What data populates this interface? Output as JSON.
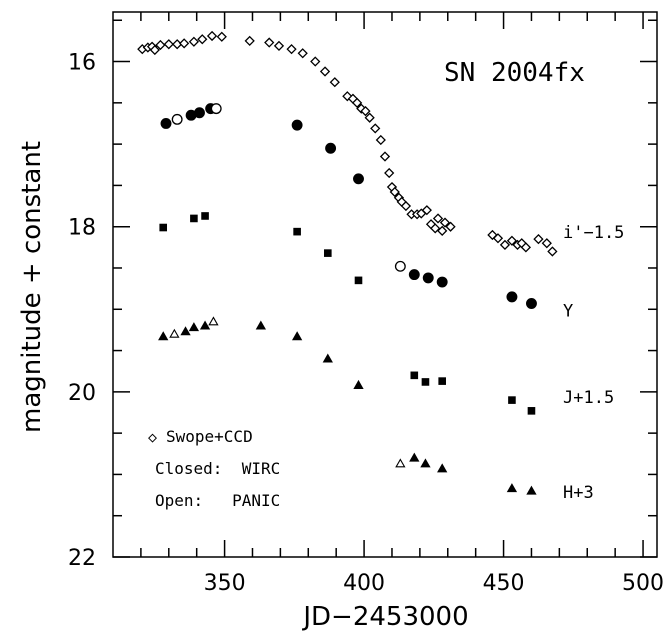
{
  "chart_data": {
    "type": "scatter",
    "title": "SN 2004fx",
    "xlabel": "JD−2453000",
    "ylabel": "magnitude + constant",
    "xlim": [
      310,
      505
    ],
    "ylim": [
      22,
      15.4
    ],
    "y_inverted": true,
    "grid": false,
    "x_ticks": [
      350,
      400,
      450,
      500
    ],
    "y_ticks": [
      16,
      18,
      20,
      22
    ],
    "band_labels": [
      {
        "text": "i'−1.5",
        "mag": 18.05
      },
      {
        "text": "Y",
        "mag": 19.0
      },
      {
        "text": "J+1.5",
        "mag": 20.05
      },
      {
        "text": "H+3",
        "mag": 21.2
      }
    ],
    "legend": {
      "swope_marker": "◇",
      "swope_text": "Swope+CCD",
      "closed_text": "Closed:  WIRC",
      "open_text": "Open:   PANIC"
    },
    "series": [
      {
        "name": "Swope+CCD",
        "band": "i'",
        "marker": "diamond",
        "filled": false,
        "points": [
          [
            320.5,
            15.85
          ],
          [
            322.5,
            15.83
          ],
          [
            324,
            15.82
          ],
          [
            325,
            15.86
          ],
          [
            327,
            15.8
          ],
          [
            330,
            15.79
          ],
          [
            333,
            15.79
          ],
          [
            335.5,
            15.78
          ],
          [
            339,
            15.76
          ],
          [
            342,
            15.73
          ],
          [
            345.5,
            15.69
          ],
          [
            349,
            15.7
          ],
          [
            359,
            15.75
          ],
          [
            366,
            15.77
          ],
          [
            369.5,
            15.81
          ],
          [
            374,
            15.85
          ],
          [
            378,
            15.9
          ],
          [
            382.5,
            16.0
          ],
          [
            386,
            16.12
          ],
          [
            389.5,
            16.25
          ],
          [
            394,
            16.42
          ],
          [
            396,
            16.45
          ],
          [
            397.5,
            16.5
          ],
          [
            399,
            16.57
          ],
          [
            400.5,
            16.6
          ],
          [
            402,
            16.68
          ],
          [
            404,
            16.81
          ],
          [
            406,
            16.95
          ],
          [
            407.5,
            17.15
          ],
          [
            409,
            17.35
          ],
          [
            410,
            17.52
          ],
          [
            411,
            17.58
          ],
          [
            412.5,
            17.65
          ],
          [
            413.5,
            17.7
          ],
          [
            415,
            17.75
          ],
          [
            417,
            17.85
          ],
          [
            419,
            17.85
          ],
          [
            420.5,
            17.84
          ],
          [
            422.5,
            17.8
          ],
          [
            424,
            17.97
          ],
          [
            425.5,
            18.02
          ],
          [
            426.5,
            17.9
          ],
          [
            428,
            18.05
          ],
          [
            429,
            17.95
          ],
          [
            431,
            18.0
          ],
          [
            446,
            18.1
          ],
          [
            448,
            18.14
          ],
          [
            450.5,
            18.22
          ],
          [
            453,
            18.17
          ],
          [
            455,
            18.22
          ],
          [
            456.5,
            18.2
          ],
          [
            458,
            18.25
          ],
          [
            462.5,
            18.15
          ],
          [
            465.5,
            18.2
          ],
          [
            467.5,
            18.3
          ]
        ]
      },
      {
        "name": "Y WIRC",
        "band": "Y",
        "marker": "circle",
        "filled": true,
        "points": [
          [
            329,
            16.75
          ],
          [
            338,
            16.65
          ],
          [
            341,
            16.62
          ],
          [
            345,
            16.57
          ],
          [
            376,
            16.77
          ],
          [
            388,
            17.05
          ],
          [
            398,
            17.42
          ],
          [
            418,
            18.58
          ],
          [
            423,
            18.62
          ],
          [
            428,
            18.67
          ],
          [
            453,
            18.85
          ],
          [
            460,
            18.93
          ]
        ]
      },
      {
        "name": "Y PANIC",
        "band": "Y",
        "marker": "circle",
        "filled": false,
        "points": [
          [
            333,
            16.7
          ],
          [
            347,
            16.57
          ],
          [
            413,
            18.48
          ]
        ]
      },
      {
        "name": "J WIRC",
        "band": "J",
        "marker": "square",
        "filled": true,
        "points": [
          [
            328,
            18.01
          ],
          [
            339,
            17.9
          ],
          [
            343,
            17.87
          ],
          [
            376,
            18.06
          ],
          [
            387,
            18.32
          ],
          [
            398,
            18.65
          ],
          [
            418,
            19.8
          ],
          [
            422,
            19.88
          ],
          [
            428,
            19.87
          ],
          [
            453,
            20.1
          ],
          [
            460,
            20.23
          ]
        ]
      },
      {
        "name": "H WIRC",
        "band": "H",
        "marker": "triangle",
        "filled": true,
        "points": [
          [
            328,
            19.33
          ],
          [
            336,
            19.27
          ],
          [
            339,
            19.22
          ],
          [
            343,
            19.2
          ],
          [
            363,
            19.2
          ],
          [
            376,
            19.33
          ],
          [
            387,
            19.6
          ],
          [
            398,
            19.92
          ],
          [
            418,
            20.8
          ],
          [
            422,
            20.87
          ],
          [
            428,
            20.93
          ],
          [
            453,
            21.17
          ],
          [
            460,
            21.2
          ]
        ]
      },
      {
        "name": "H PANIC",
        "band": "H",
        "marker": "triangle",
        "filled": false,
        "points": [
          [
            332,
            19.3
          ],
          [
            346,
            19.15
          ],
          [
            413,
            20.87
          ]
        ]
      }
    ]
  }
}
